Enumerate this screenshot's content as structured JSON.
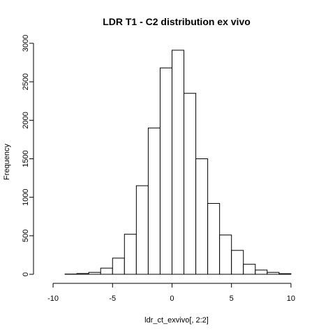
{
  "chart_data": {
    "type": "bar",
    "title": "LDR T1 - C2 distribution ex vivo",
    "xlabel": "ldr_ct_exvivo[, 2:2]",
    "ylabel": "Frequency",
    "xlim": [
      -11,
      12
    ],
    "ylim": [
      0,
      3000
    ],
    "xticks": [
      -10,
      -5,
      0,
      5,
      10
    ],
    "yticks": [
      0,
      500,
      1000,
      1500,
      2000,
      2500,
      3000
    ],
    "bin_width": 1,
    "bins": [
      {
        "start": -9,
        "end": -8,
        "count": 3
      },
      {
        "start": -8,
        "end": -7,
        "count": 10
      },
      {
        "start": -7,
        "end": -6,
        "count": 25
      },
      {
        "start": -6,
        "end": -5,
        "count": 80
      },
      {
        "start": -5,
        "end": -4,
        "count": 210
      },
      {
        "start": -4,
        "end": -3,
        "count": 520
      },
      {
        "start": -3,
        "end": -2,
        "count": 1150
      },
      {
        "start": -2,
        "end": -1,
        "count": 1900
      },
      {
        "start": -1,
        "end": 0,
        "count": 2680
      },
      {
        "start": 0,
        "end": 1,
        "count": 2910
      },
      {
        "start": 1,
        "end": 2,
        "count": 2350
      },
      {
        "start": 2,
        "end": 3,
        "count": 1500
      },
      {
        "start": 3,
        "end": 4,
        "count": 920
      },
      {
        "start": 4,
        "end": 5,
        "count": 510
      },
      {
        "start": 5,
        "end": 6,
        "count": 310
      },
      {
        "start": 6,
        "end": 7,
        "count": 130
      },
      {
        "start": 7,
        "end": 8,
        "count": 55
      },
      {
        "start": 8,
        "end": 9,
        "count": 25
      },
      {
        "start": 9,
        "end": 10,
        "count": 8
      }
    ],
    "grid": false
  }
}
